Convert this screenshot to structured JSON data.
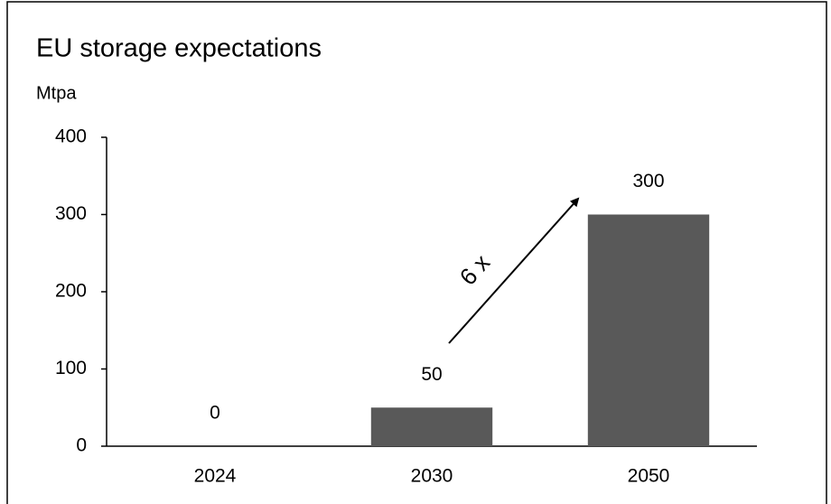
{
  "chart_data": {
    "type": "bar",
    "title": "EU storage expectations",
    "y_label": "Mtpa",
    "categories": [
      "2024",
      "2030",
      "2050"
    ],
    "values": [
      0,
      50,
      300
    ],
    "color": "#595959",
    "ylim": [
      0,
      400
    ],
    "yticks": [
      0,
      100,
      200,
      300,
      400
    ],
    "annotation": "6 x"
  }
}
